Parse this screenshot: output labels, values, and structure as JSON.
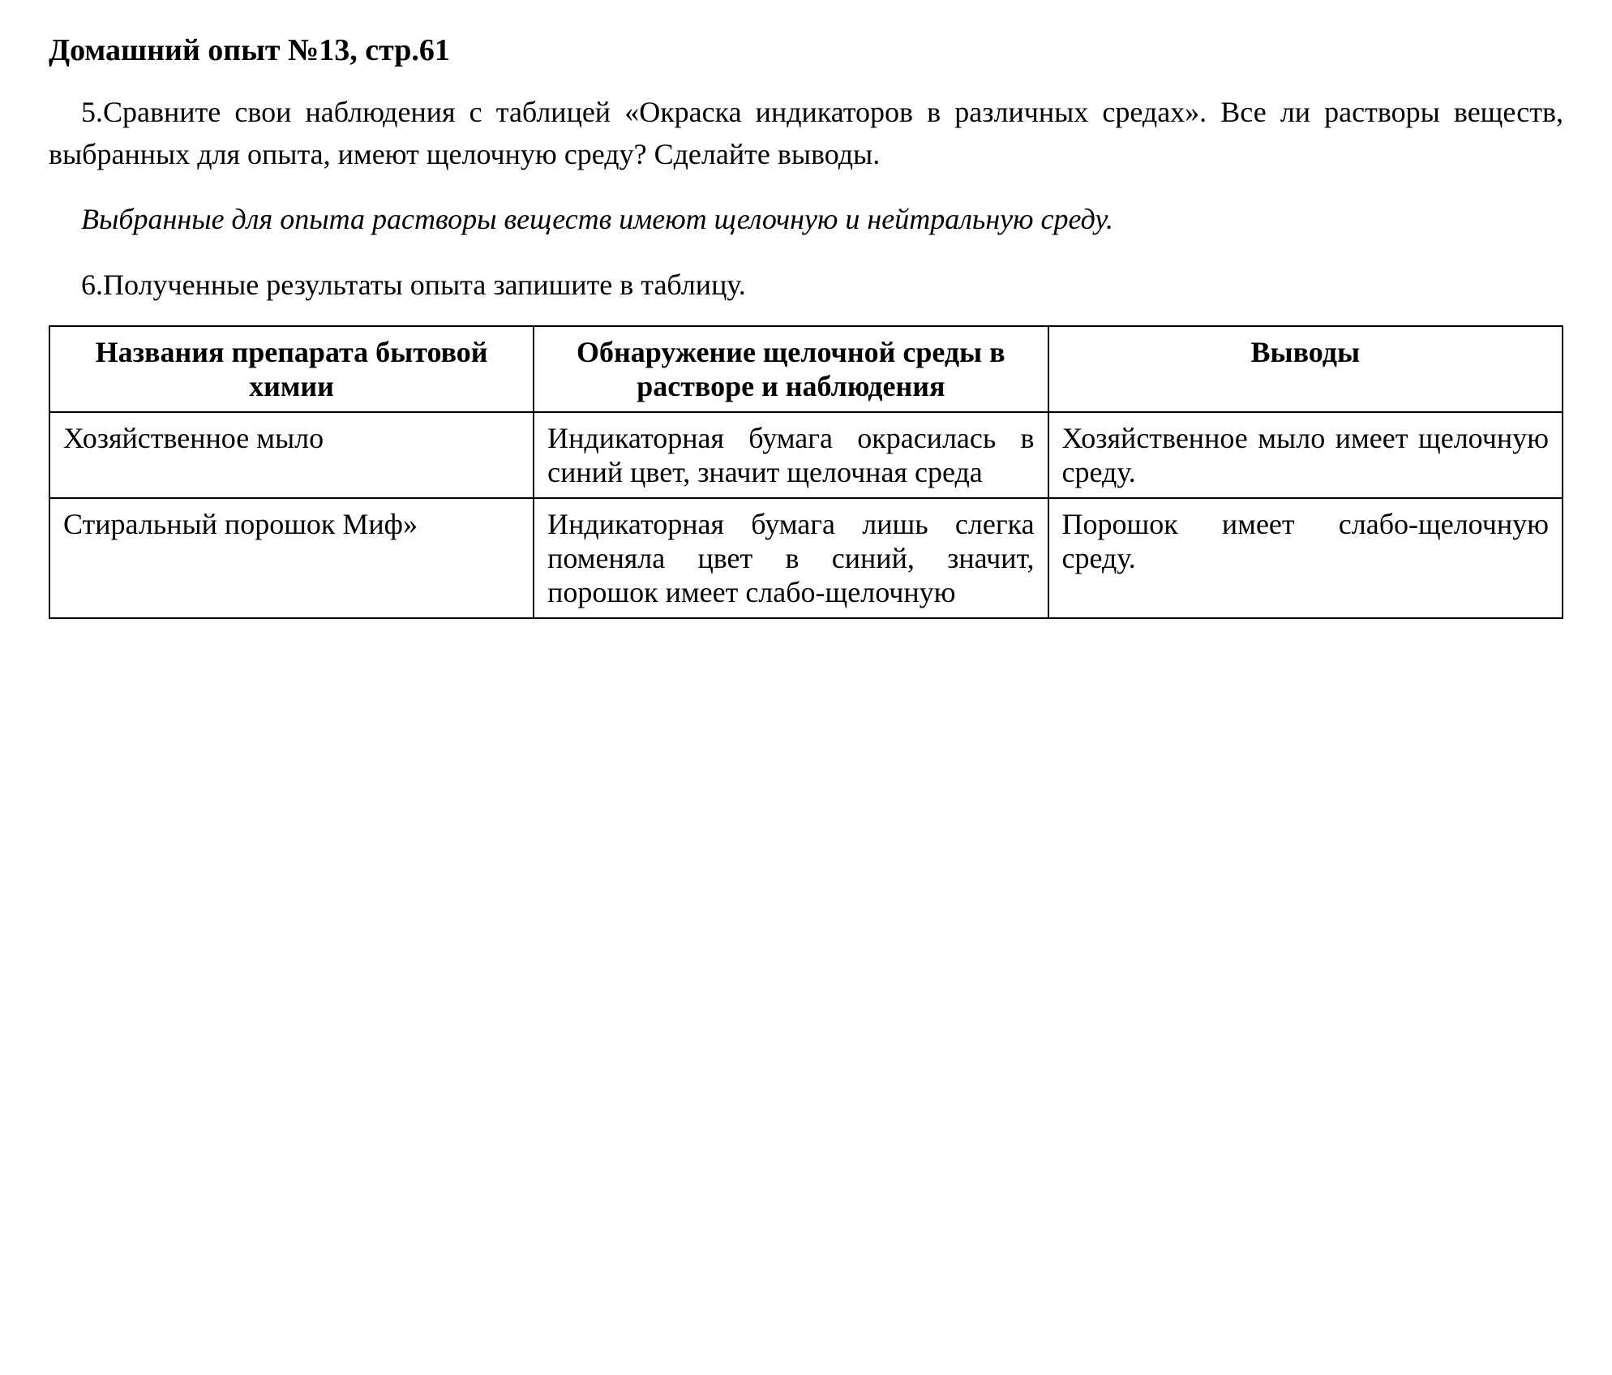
{
  "title": "Домашний опыт №13, стр.61",
  "paragraph5": "5.Сравните свои наблюдения с таблицей «Окраска индикаторов в различных средах». Все ли растворы веществ, выбранных  для опыта, имеют щелочную среду? Сделайте выводы.",
  "italicParagraph": "Выбранные для опыта растворы веществ имеют щелочную и нейтральную среду.",
  "paragraph6": "6.Полученные результаты опыта запишите в таблицу.",
  "table": {
    "headers": {
      "col1": "Названия препарата бытовой химии",
      "col2": "Обнаружение щелочной среды в растворе и наблюдения",
      "col3": "Выводы"
    },
    "rows": [
      {
        "col1": "Хозяйственное мыло",
        "col2": "Индикаторная бумага окрасилась в синий цвет, значит щелочная среда",
        "col3": "Хозяйственное мыло имеет щелочную среду."
      },
      {
        "col1": "Стиральный порошок Миф»",
        "col2": "Индикаторная бумага лишь слегка поменяла цвет в синий, значит, порошок имеет слабо-щелочную",
        "col3": "Порошок имеет слабо-щелочную среду."
      }
    ]
  },
  "styling": {
    "background_color": "#ffffff",
    "text_color": "#000000",
    "border_color": "#000000",
    "font_family": "Times New Roman",
    "title_fontsize": 38,
    "body_fontsize": 36,
    "title_weight": "bold",
    "header_weight": "bold",
    "border_width": 2,
    "col_widths": [
      "32%",
      "34%",
      "34%"
    ],
    "line_height": 1.45
  }
}
